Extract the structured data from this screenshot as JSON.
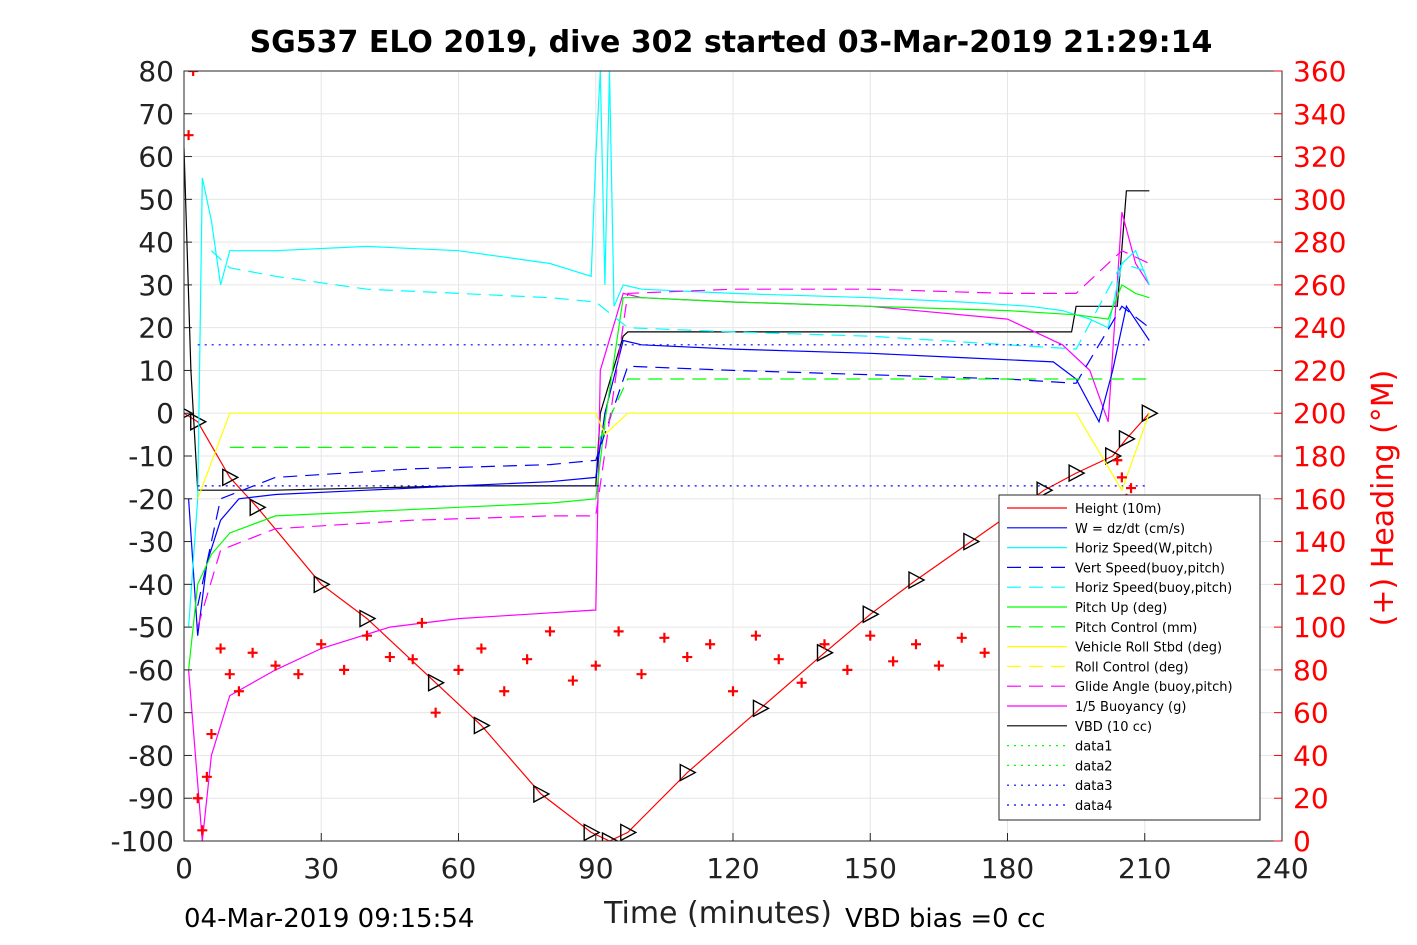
{
  "chart_data": {
    "type": "line",
    "title": "SG537 ELO 2019, dive 302 started 03-Mar-2019 21:29:14",
    "xlabel": "Time (minutes)",
    "ylabel_right": "(+) Heading (°M)",
    "xlim": [
      0,
      240
    ],
    "ylim": [
      -100,
      80
    ],
    "ylim_right": [
      0,
      360
    ],
    "x_ticks": [
      "0",
      "30",
      "60",
      "90",
      "120",
      "150",
      "180",
      "210",
      "240"
    ],
    "y_ticks": [
      "80",
      "70",
      "60",
      "50",
      "40",
      "30",
      "20",
      "10",
      "0",
      "-10",
      "-20",
      "-30",
      "-40",
      "-50",
      "-60",
      "-70",
      "-80",
      "-90",
      "-100"
    ],
    "y_right_ticks": [
      "360",
      "340",
      "320",
      "300",
      "280",
      "260",
      "240",
      "220",
      "200",
      "180",
      "160",
      "140",
      "120",
      "100",
      "80",
      "60",
      "40",
      "20",
      "0"
    ],
    "grid": true,
    "legend_position": "bottom-right",
    "footer_left": "04-Mar-2019 09:15:54",
    "footer_right": "VBD bias =0 cc",
    "legend": [
      {
        "name": "Height (10m)",
        "color": "#ff0000",
        "dash": "solid"
      },
      {
        "name": "W = dz/dt (cm/s)",
        "color": "#0000ff",
        "dash": "solid"
      },
      {
        "name": "Horiz Speed(W,pitch)",
        "color": "#00ffff",
        "dash": "solid"
      },
      {
        "name": "Vert Speed(buoy,pitch)",
        "color": "#0000ff",
        "dash": "dashed"
      },
      {
        "name": "Horiz Speed(buoy,pitch)",
        "color": "#00ffff",
        "dash": "dashed"
      },
      {
        "name": "Pitch Up (deg)",
        "color": "#00ff00",
        "dash": "solid"
      },
      {
        "name": "Pitch Control (mm)",
        "color": "#00ff00",
        "dash": "dashed"
      },
      {
        "name": "Vehicle Roll Stbd (deg)",
        "color": "#ffff00",
        "dash": "solid"
      },
      {
        "name": "Roll Control (deg)",
        "color": "#ffff00",
        "dash": "dashed"
      },
      {
        "name": "Glide Angle (buoy,pitch)",
        "color": "#ff00ff",
        "dash": "dashed"
      },
      {
        "name": "1/5 Buoyancy (g)",
        "color": "#ff00ff",
        "dash": "solid"
      },
      {
        "name": "VBD (10 cc)",
        "color": "#000000",
        "dash": "solid"
      },
      {
        "name": "data1",
        "color": "#00ff00",
        "dash": "dotted"
      },
      {
        "name": "data2",
        "color": "#00ff00",
        "dash": "dotted"
      },
      {
        "name": "data3",
        "color": "#0000ff",
        "dash": "dotted"
      },
      {
        "name": "data4",
        "color": "#0000ff",
        "dash": "dotted"
      }
    ],
    "series": [
      {
        "name": "Height (10m)",
        "color": "#ff0000",
        "x": [
          0,
          3,
          10,
          16,
          30,
          40,
          55,
          65,
          78,
          89,
          93,
          97,
          110,
          126,
          140,
          150,
          160,
          172,
          180,
          188,
          195,
          203,
          206,
          211
        ],
        "y": [
          0,
          -2,
          -15,
          -22,
          -40,
          -48,
          -63,
          -73,
          -89,
          -98,
          -100,
          -98,
          -84,
          -69,
          -56,
          -47,
          -39,
          -30,
          -24,
          -18,
          -14,
          -10,
          -6,
          0
        ]
      },
      {
        "name": "VBD (10 cc)",
        "color": "#000000",
        "x": [
          0,
          1.5,
          3,
          20,
          60,
          90,
          91,
          96,
          97,
          150,
          194,
          195,
          204,
          206,
          211
        ],
        "y": [
          62,
          10,
          -18,
          -18,
          -17,
          -17,
          0,
          18,
          19,
          19,
          19,
          25,
          25,
          52,
          52
        ]
      },
      {
        "name": "1/5 Buoyancy (g)",
        "color": "#ff00ff",
        "x": [
          1,
          4,
          6,
          10,
          20,
          30,
          45,
          60,
          75,
          90,
          91,
          96,
          100,
          120,
          150,
          180,
          192,
          198,
          202,
          205,
          208,
          211
        ],
        "y": [
          -60,
          -100,
          -80,
          -66,
          -60,
          -55,
          -50,
          -48,
          -47,
          -46,
          10,
          28,
          27,
          26,
          25,
          22,
          16,
          10,
          -2,
          47,
          35,
          30
        ]
      },
      {
        "name": "W = dz/dt (cm/s)",
        "color": "#0000ff",
        "x": [
          1,
          3,
          5,
          8,
          12,
          20,
          40,
          60,
          80,
          90,
          92,
          96,
          100,
          120,
          150,
          170,
          190,
          195,
          200,
          203,
          206,
          211
        ],
        "y": [
          -20,
          -52,
          -35,
          -25,
          -20,
          -19,
          -18,
          -17,
          -16,
          -15,
          0,
          17,
          16,
          15,
          14,
          13,
          12,
          8,
          -2,
          10,
          25,
          17
        ]
      },
      {
        "name": "Horiz Speed(W,pitch)",
        "color": "#00ffff",
        "x": [
          1,
          3,
          4,
          6,
          8,
          10,
          20,
          40,
          60,
          80,
          89,
          90,
          91,
          92,
          93,
          94,
          96,
          100,
          120,
          150,
          170,
          185,
          192,
          198,
          202,
          205,
          208,
          211
        ],
        "y": [
          -50,
          -20,
          55,
          45,
          30,
          38,
          38,
          39,
          38,
          35,
          32,
          60,
          80,
          30,
          80,
          25,
          30,
          29,
          28,
          27,
          26,
          25,
          24,
          22,
          20,
          35,
          38,
          30
        ]
      },
      {
        "name": "Pitch Up (deg)",
        "color": "#00ff00",
        "x": [
          1,
          3,
          6,
          10,
          20,
          40,
          60,
          80,
          90,
          92,
          96,
          100,
          120,
          150,
          180,
          195,
          202,
          205,
          208,
          211
        ],
        "y": [
          -60,
          -40,
          -33,
          -28,
          -24,
          -23,
          -22,
          -21,
          -20,
          -2,
          27,
          27,
          26,
          25,
          24,
          23,
          22,
          30,
          28,
          27
        ]
      },
      {
        "name": "Vert Speed(buoy,pitch)",
        "color": "#0000ff",
        "dash": "dashed",
        "x": [
          3,
          8,
          20,
          50,
          80,
          90,
          97,
          120,
          150,
          180,
          195,
          205,
          211
        ],
        "y": [
          -45,
          -20,
          -15,
          -13,
          -12,
          -11,
          11,
          10,
          9,
          8,
          7,
          25,
          20
        ]
      },
      {
        "name": "Horiz Speed(buoy,pitch)",
        "color": "#00ffff",
        "dash": "dashed",
        "x": [
          6,
          10,
          20,
          40,
          60,
          80,
          90,
          97,
          120,
          150,
          180,
          195,
          205,
          211
        ],
        "y": [
          38,
          34,
          32,
          29,
          28,
          27,
          26,
          20,
          19,
          18,
          16,
          15,
          35,
          33
        ]
      },
      {
        "name": "Pitch Control (mm)",
        "color": "#00ff00",
        "dash": "dashed",
        "x": [
          10,
          90,
          97,
          211
        ],
        "y": [
          -8,
          -8,
          8,
          8
        ]
      },
      {
        "name": "Glide Angle (buoy,pitch)",
        "color": "#ff00ff",
        "dash": "dashed",
        "x": [
          3,
          8,
          20,
          50,
          80,
          90,
          97,
          120,
          150,
          180,
          195,
          205,
          211
        ],
        "y": [
          -50,
          -32,
          -27,
          -25,
          -24,
          -24,
          28,
          29,
          29,
          28,
          28,
          38,
          35
        ]
      },
      {
        "name": "data3",
        "color": "#0000ff",
        "dash": "dotted",
        "x": [
          3,
          211
        ],
        "y": [
          16,
          16
        ]
      },
      {
        "name": "data4",
        "color": "#0000ff",
        "dash": "dotted",
        "x": [
          3,
          211
        ],
        "y": [
          -17,
          -17
        ]
      },
      {
        "name": "Vehicle Roll Stbd (deg)",
        "color": "#ffff00",
        "x": [
          3,
          10,
          40,
          60,
          90,
          92,
          97,
          120,
          150,
          180,
          195,
          205,
          211
        ],
        "y": [
          -20,
          0,
          0,
          0,
          0,
          -5,
          0,
          0,
          0,
          0,
          0,
          -18,
          0
        ]
      }
    ],
    "heading": {
      "axis": "right",
      "color": "#ff0000",
      "marker": "+",
      "x": [
        1,
        2,
        3,
        4,
        5,
        6,
        8,
        10,
        12,
        15,
        20,
        25,
        30,
        35,
        40,
        45,
        50,
        52,
        55,
        60,
        65,
        70,
        75,
        80,
        85,
        90,
        95,
        100,
        105,
        110,
        115,
        120,
        125,
        130,
        135,
        140,
        145,
        150,
        155,
        160,
        165,
        170,
        175,
        180,
        185,
        190,
        195,
        200,
        204,
        205,
        206,
        207
      ],
      "y": [
        330,
        360,
        20,
        5,
        30,
        50,
        90,
        78,
        70,
        88,
        82,
        78,
        92,
        80,
        96,
        86,
        85,
        102,
        60,
        80,
        90,
        70,
        85,
        98,
        75,
        82,
        98,
        78,
        95,
        86,
        92,
        70,
        96,
        85,
        74,
        92,
        80,
        96,
        84,
        92,
        82,
        95,
        88,
        72,
        86,
        82,
        94,
        90,
        178,
        170,
        160,
        165
      ]
    }
  }
}
